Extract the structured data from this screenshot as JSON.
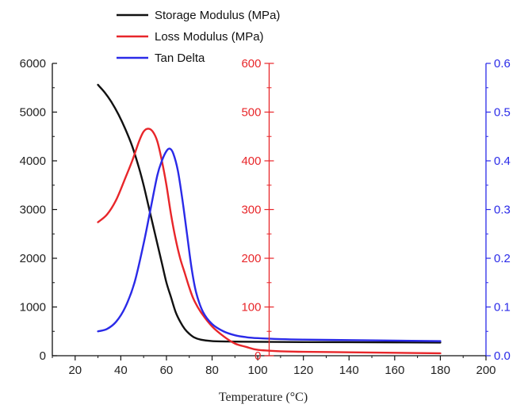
{
  "chart_data": {
    "type": "line",
    "xlabel": "Temperature (°C)",
    "xlim": [
      10,
      200
    ],
    "x_ticks": [
      20,
      40,
      60,
      80,
      100,
      120,
      140,
      160,
      180,
      200
    ],
    "axes": [
      {
        "id": "left",
        "color": "#111111",
        "ylim": [
          0,
          6000
        ],
        "ticks": [
          0,
          1000,
          2000,
          3000,
          4000,
          5000,
          6000
        ]
      },
      {
        "id": "mid",
        "color": "#e8262a",
        "x_position": 105,
        "ylim": [
          0,
          600
        ],
        "ticks": [
          0,
          100,
          200,
          300,
          400,
          500,
          600
        ]
      },
      {
        "id": "right",
        "color": "#2a2ae8",
        "ylim": [
          0,
          0.6
        ],
        "ticks": [
          0.0,
          0.1,
          0.2,
          0.3,
          0.4,
          0.5,
          0.6
        ],
        "tick_labels": [
          "0.0",
          "0.1",
          "0.2",
          "0.3",
          "0.4",
          "0.5",
          "0.6"
        ]
      }
    ],
    "series": [
      {
        "name": "Storage Modulus (MPa)",
        "color": "#111111",
        "axis": "left",
        "x": [
          30,
          33,
          36,
          39,
          42,
          45,
          48,
          50,
          52,
          54,
          56,
          58,
          60,
          62,
          64,
          66,
          68,
          70,
          72,
          75,
          80,
          90,
          100,
          120,
          150,
          180
        ],
        "y": [
          5560,
          5400,
          5200,
          4950,
          4650,
          4300,
          3850,
          3500,
          3100,
          2700,
          2300,
          1900,
          1500,
          1200,
          900,
          700,
          550,
          450,
          380,
          330,
          300,
          290,
          285,
          280,
          275,
          270
        ]
      },
      {
        "name": "Loss Modulus (MPa)",
        "color": "#e8262a",
        "axis": "mid",
        "x": [
          30,
          34,
          38,
          42,
          45,
          48,
          50,
          52,
          54,
          56,
          58,
          60,
          62,
          64,
          66,
          68,
          70,
          72,
          75,
          80,
          85,
          90,
          95,
          100,
          110,
          120,
          140,
          160,
          180
        ],
        "y": [
          274,
          290,
          320,
          365,
          400,
          440,
          460,
          466,
          460,
          440,
          400,
          350,
          290,
          240,
          200,
          170,
          140,
          115,
          90,
          60,
          40,
          25,
          18,
          12,
          9,
          8,
          7,
          6,
          5
        ]
      },
      {
        "name": "Tan Delta",
        "color": "#2a2ae8",
        "axis": "right",
        "x": [
          30,
          34,
          38,
          42,
          46,
          50,
          53,
          56,
          58,
          60,
          61.5,
          63,
          65,
          67,
          69,
          71,
          73,
          76,
          80,
          85,
          90,
          95,
          100,
          110,
          120,
          140,
          160,
          180
        ],
        "y": [
          0.05,
          0.055,
          0.07,
          0.1,
          0.15,
          0.23,
          0.3,
          0.37,
          0.4,
          0.42,
          0.425,
          0.415,
          0.38,
          0.32,
          0.25,
          0.18,
          0.13,
          0.09,
          0.065,
          0.05,
          0.042,
          0.038,
          0.036,
          0.034,
          0.033,
          0.032,
          0.031,
          0.03
        ]
      }
    ],
    "legend_position": "top"
  }
}
